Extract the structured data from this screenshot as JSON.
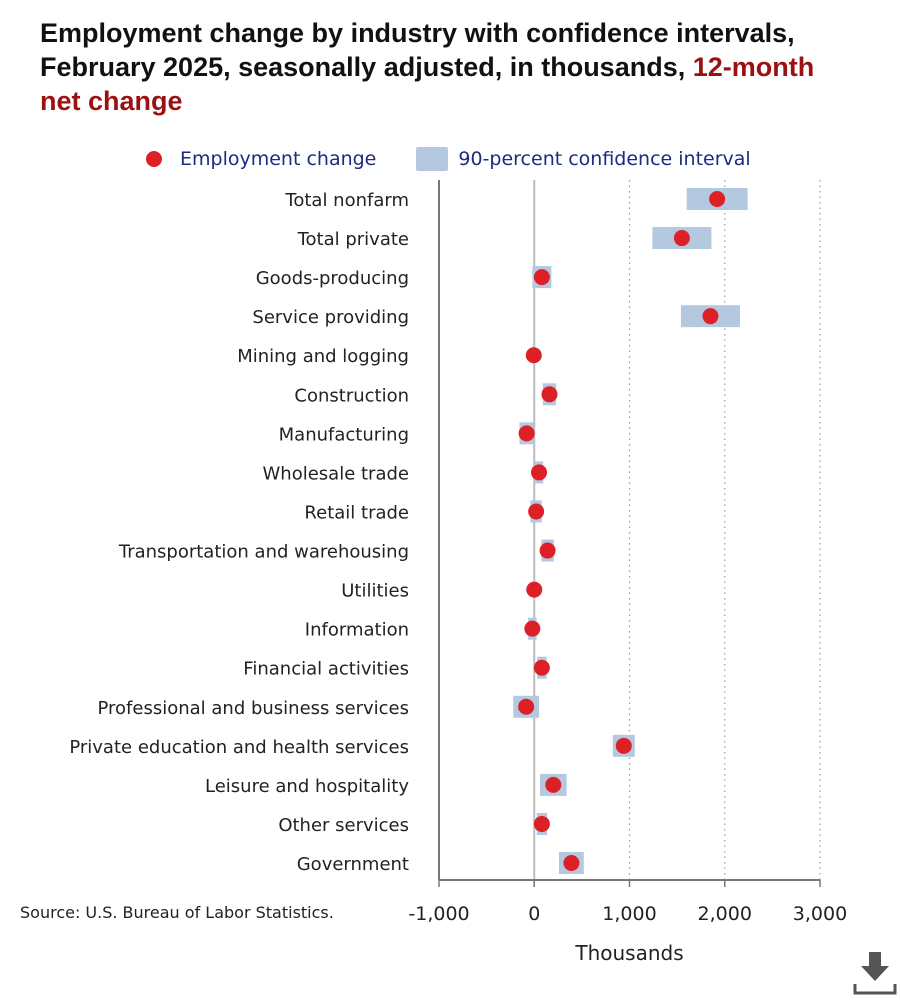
{
  "title_main": "Employment change by industry with confidence intervals, February 2025, seasonally adjusted, in thousands,",
  "title_accent": "12-month net change",
  "legend": {
    "point_label": "Employment change",
    "interval_label": "90-percent confidence interval"
  },
  "source": "Source: U.S. Bureau of Labor Statistics.",
  "colors": {
    "point": "#dd1f26",
    "interval": "#b4c8e0",
    "title_accent": "#9b1111",
    "legend_text": "#1c2b80",
    "zero_line": "#bbbbbb",
    "grid": "#999999",
    "axis": "#777777"
  },
  "icons": {
    "download": "download-icon"
  },
  "chart_data": {
    "type": "scatter",
    "orientation": "horizontal",
    "xlabel": "Thousands",
    "xlim": [
      -1000,
      3000
    ],
    "xticks": [
      -1000,
      0,
      1000,
      2000,
      3000
    ],
    "xtick_labels": [
      "-1,000",
      "0",
      "1,000",
      "2,000",
      "3,000"
    ],
    "grid": "vertical dotted",
    "legend_position": "top",
    "categories": [
      "Total nonfarm",
      "Total private",
      "Goods-producing",
      "Service providing",
      "Mining and logging",
      "Construction",
      "Manufacturing",
      "Wholesale trade",
      "Retail trade",
      "Transportation and warehousing",
      "Utilities",
      "Information",
      "Financial activities",
      "Professional and business services",
      "Private education and health services",
      "Leisure and hospitality",
      "Other services",
      "Government"
    ],
    "series": [
      {
        "name": "Employment change",
        "values": [
          1920,
          1550,
          80,
          1850,
          -5,
          160,
          -80,
          50,
          20,
          140,
          0,
          -20,
          80,
          -85,
          940,
          200,
          80,
          390
        ]
      },
      {
        "name": "90-percent confidence interval",
        "lower": [
          1600,
          1240,
          -20,
          1540,
          -15,
          90,
          -155,
          5,
          -40,
          75,
          -5,
          -65,
          30,
          -220,
          825,
          60,
          25,
          260
        ],
        "upper": [
          2240,
          1860,
          180,
          2160,
          5,
          230,
          -5,
          95,
          80,
          205,
          5,
          25,
          130,
          50,
          1055,
          340,
          135,
          520
        ]
      }
    ]
  }
}
